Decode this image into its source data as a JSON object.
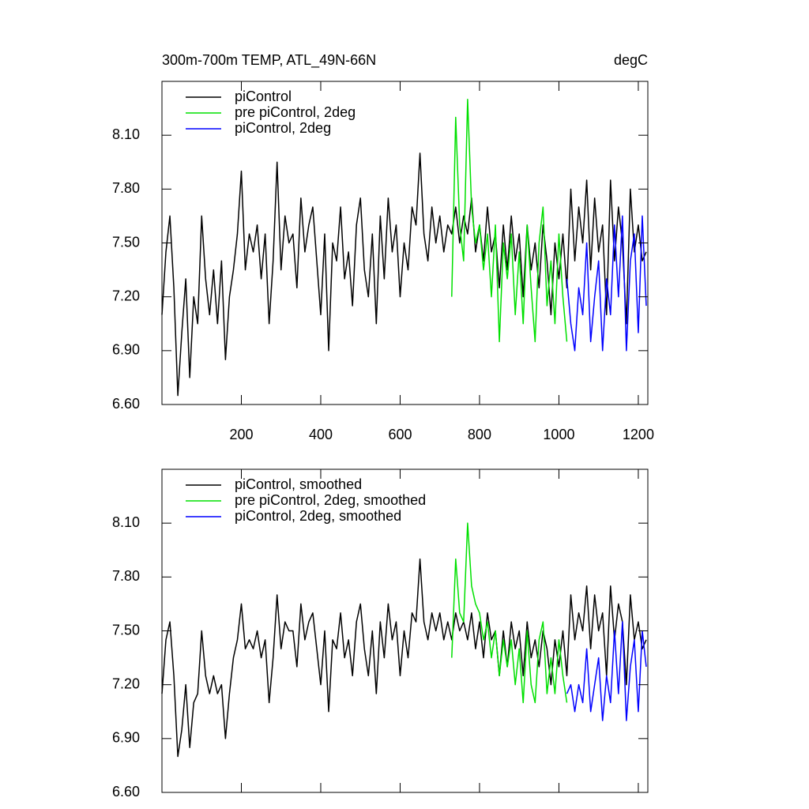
{
  "chart_data": [
    {
      "type": "line",
      "title": "300m-700m TEMP, ATL_49N-66N",
      "unit_label": "degC",
      "xlim": [
        0,
        1224
      ],
      "ylim": [
        6.6,
        8.4
      ],
      "xticks": [
        200,
        400,
        600,
        800,
        1000,
        1200
      ],
      "xtick_labels": true,
      "yticks": [
        {
          "value": 6.6,
          "label": "6.60"
        },
        {
          "value": 6.9,
          "label": "6.90"
        },
        {
          "value": 7.2,
          "label": "7.20"
        },
        {
          "value": 7.5,
          "label": "7.50"
        },
        {
          "value": 7.8,
          "label": "7.80"
        },
        {
          "value": 8.1,
          "label": "8.10"
        }
      ],
      "legend": "top-left",
      "series": [
        {
          "name": "piControl",
          "color": "#000000",
          "x": [
            0,
            10,
            20,
            30,
            40,
            50,
            60,
            70,
            80,
            90,
            100,
            110,
            120,
            130,
            140,
            150,
            160,
            170,
            180,
            190,
            200,
            210,
            220,
            230,
            240,
            250,
            260,
            270,
            280,
            290,
            300,
            310,
            320,
            330,
            340,
            350,
            360,
            370,
            380,
            390,
            400,
            410,
            420,
            430,
            440,
            450,
            460,
            470,
            480,
            490,
            500,
            510,
            520,
            530,
            540,
            550,
            560,
            570,
            580,
            590,
            600,
            610,
            620,
            630,
            640,
            650,
            660,
            670,
            680,
            690,
            700,
            710,
            720,
            730,
            740,
            750,
            760,
            770,
            780,
            790,
            800,
            810,
            820,
            830,
            840,
            850,
            860,
            870,
            880,
            890,
            900,
            910,
            920,
            930,
            940,
            950,
            960,
            970,
            980,
            990,
            1000,
            1010,
            1020,
            1030,
            1040,
            1050,
            1060,
            1070,
            1080,
            1090,
            1100,
            1110,
            1120,
            1130,
            1140,
            1150,
            1160,
            1170,
            1180,
            1190,
            1200,
            1210,
            1220
          ],
          "values": [
            7.1,
            7.45,
            7.65,
            7.25,
            6.65,
            7.0,
            7.3,
            6.75,
            7.2,
            7.05,
            7.65,
            7.3,
            7.1,
            7.35,
            7.05,
            7.4,
            6.85,
            7.2,
            7.35,
            7.55,
            7.9,
            7.35,
            7.55,
            7.45,
            7.6,
            7.3,
            7.55,
            7.05,
            7.4,
            7.95,
            7.35,
            7.65,
            7.5,
            7.55,
            7.25,
            7.75,
            7.45,
            7.6,
            7.7,
            7.4,
            7.1,
            7.55,
            6.9,
            7.5,
            7.4,
            7.7,
            7.3,
            7.45,
            7.15,
            7.6,
            7.75,
            7.35,
            7.2,
            7.55,
            7.05,
            7.65,
            7.3,
            7.75,
            7.45,
            7.6,
            7.2,
            7.5,
            7.35,
            7.7,
            7.6,
            8.0,
            7.55,
            7.4,
            7.7,
            7.5,
            7.65,
            7.45,
            7.6,
            7.55,
            7.7,
            7.5,
            7.65,
            7.55,
            7.75,
            7.45,
            7.6,
            7.4,
            7.7,
            7.45,
            7.55,
            7.25,
            7.6,
            7.35,
            7.65,
            7.4,
            7.55,
            7.2,
            7.6,
            7.35,
            7.5,
            7.25,
            7.6,
            7.4,
            7.1,
            7.5,
            7.3,
            7.55,
            7.25,
            7.8,
            7.4,
            7.7,
            7.5,
            7.85,
            7.35,
            7.75,
            7.45,
            7.6,
            7.1,
            7.85,
            7.4,
            7.7,
            7.5,
            7.05,
            7.8,
            7.45,
            7.6,
            7.4,
            7.45
          ]
        },
        {
          "name": "pre piControl, 2deg",
          "color": "#00e000",
          "x": [
            730,
            740,
            750,
            760,
            770,
            780,
            790,
            800,
            810,
            820,
            830,
            840,
            850,
            860,
            870,
            880,
            890,
            900,
            910,
            920,
            930,
            940,
            950,
            960,
            970,
            980,
            990,
            1000,
            1010,
            1020
          ],
          "values": [
            7.2,
            8.2,
            7.6,
            7.4,
            8.3,
            7.7,
            7.5,
            7.6,
            7.35,
            7.55,
            7.2,
            7.6,
            6.95,
            7.5,
            7.3,
            7.55,
            7.1,
            7.45,
            7.05,
            7.6,
            7.25,
            6.95,
            7.5,
            7.7,
            7.15,
            7.4,
            7.05,
            7.55,
            7.2,
            6.95
          ]
        },
        {
          "name": "piControl, 2deg",
          "color": "#0000ff",
          "x": [
            1020,
            1030,
            1040,
            1050,
            1060,
            1070,
            1080,
            1090,
            1100,
            1110,
            1120,
            1130,
            1140,
            1150,
            1160,
            1170,
            1180,
            1190,
            1200,
            1210,
            1220
          ],
          "values": [
            7.3,
            7.05,
            6.9,
            7.25,
            7.1,
            7.5,
            6.95,
            7.2,
            7.4,
            6.9,
            7.3,
            7.1,
            7.6,
            7.2,
            7.65,
            6.9,
            7.4,
            7.55,
            7.0,
            7.65,
            7.15
          ]
        }
      ]
    },
    {
      "type": "line",
      "xlim": [
        0,
        1224
      ],
      "ylim": [
        6.6,
        8.4
      ],
      "xticks": [
        200,
        400,
        600,
        800,
        1000,
        1200
      ],
      "xtick_labels": false,
      "yticks": [
        {
          "value": 6.6,
          "label": "6.60"
        },
        {
          "value": 6.9,
          "label": "6.90"
        },
        {
          "value": 7.2,
          "label": "7.20"
        },
        {
          "value": 7.5,
          "label": "7.50"
        },
        {
          "value": 7.8,
          "label": "7.80"
        },
        {
          "value": 8.1,
          "label": "8.10"
        }
      ],
      "legend": "top-left",
      "series": [
        {
          "name": "piControl, smoothed",
          "color": "#000000",
          "x": [
            0,
            10,
            20,
            30,
            40,
            50,
            60,
            70,
            80,
            90,
            100,
            110,
            120,
            130,
            140,
            150,
            160,
            170,
            180,
            190,
            200,
            210,
            220,
            230,
            240,
            250,
            260,
            270,
            280,
            290,
            300,
            310,
            320,
            330,
            340,
            350,
            360,
            370,
            380,
            390,
            400,
            410,
            420,
            430,
            440,
            450,
            460,
            470,
            480,
            490,
            500,
            510,
            520,
            530,
            540,
            550,
            560,
            570,
            580,
            590,
            600,
            610,
            620,
            630,
            640,
            650,
            660,
            670,
            680,
            690,
            700,
            710,
            720,
            730,
            740,
            750,
            760,
            770,
            780,
            790,
            800,
            810,
            820,
            830,
            840,
            850,
            860,
            870,
            880,
            890,
            900,
            910,
            920,
            930,
            940,
            950,
            960,
            970,
            980,
            990,
            1000,
            1010,
            1020,
            1030,
            1040,
            1050,
            1060,
            1070,
            1080,
            1090,
            1100,
            1110,
            1120,
            1130,
            1140,
            1150,
            1160,
            1170,
            1180,
            1190,
            1200,
            1210,
            1220
          ],
          "values": [
            7.15,
            7.45,
            7.55,
            7.25,
            6.8,
            6.95,
            7.2,
            6.85,
            7.1,
            7.15,
            7.5,
            7.25,
            7.15,
            7.25,
            7.15,
            7.2,
            6.9,
            7.15,
            7.35,
            7.45,
            7.65,
            7.4,
            7.45,
            7.4,
            7.5,
            7.35,
            7.45,
            7.1,
            7.35,
            7.7,
            7.4,
            7.55,
            7.5,
            7.5,
            7.3,
            7.65,
            7.45,
            7.55,
            7.6,
            7.4,
            7.2,
            7.5,
            7.05,
            7.45,
            7.4,
            7.6,
            7.35,
            7.45,
            7.25,
            7.55,
            7.65,
            7.4,
            7.25,
            7.5,
            7.15,
            7.55,
            7.35,
            7.65,
            7.45,
            7.55,
            7.25,
            7.5,
            7.35,
            7.6,
            7.55,
            7.9,
            7.55,
            7.45,
            7.6,
            7.5,
            7.6,
            7.45,
            7.55,
            7.45,
            7.6,
            7.5,
            7.55,
            7.45,
            7.6,
            7.4,
            7.55,
            7.35,
            7.6,
            7.45,
            7.5,
            7.25,
            7.5,
            7.3,
            7.55,
            7.4,
            7.5,
            7.25,
            7.55,
            7.35,
            7.45,
            7.3,
            7.5,
            7.4,
            7.2,
            7.45,
            7.3,
            7.5,
            7.25,
            7.7,
            7.45,
            7.6,
            7.5,
            7.75,
            7.4,
            7.7,
            7.5,
            7.6,
            7.25,
            7.75,
            7.45,
            7.65,
            7.55,
            7.2,
            7.7,
            7.45,
            7.55,
            7.4,
            7.45
          ]
        },
        {
          "name": "pre piControl, 2deg, smoothed",
          "color": "#00e000",
          "x": [
            730,
            740,
            750,
            760,
            770,
            780,
            790,
            800,
            810,
            820,
            830,
            840,
            850,
            860,
            870,
            880,
            890,
            900,
            910,
            920,
            930,
            940,
            950,
            960,
            970,
            980,
            990,
            1000,
            1010,
            1020
          ],
          "values": [
            7.35,
            7.9,
            7.6,
            7.55,
            8.1,
            7.75,
            7.65,
            7.6,
            7.45,
            7.55,
            7.35,
            7.5,
            7.25,
            7.45,
            7.3,
            7.45,
            7.2,
            7.4,
            7.1,
            7.5,
            7.2,
            7.1,
            7.45,
            7.55,
            7.15,
            7.35,
            7.15,
            7.45,
            7.25,
            7.1
          ]
        },
        {
          "name": "piControl, 2deg, smoothed",
          "color": "#0000ff",
          "x": [
            1020,
            1030,
            1040,
            1050,
            1060,
            1070,
            1080,
            1090,
            1100,
            1110,
            1120,
            1130,
            1140,
            1150,
            1160,
            1170,
            1180,
            1190,
            1200,
            1210,
            1220
          ],
          "values": [
            7.15,
            7.2,
            7.05,
            7.2,
            7.1,
            7.4,
            7.05,
            7.2,
            7.35,
            7.0,
            7.25,
            7.1,
            7.5,
            7.15,
            7.55,
            7.0,
            7.3,
            7.45,
            7.05,
            7.5,
            7.3
          ]
        }
      ]
    }
  ]
}
